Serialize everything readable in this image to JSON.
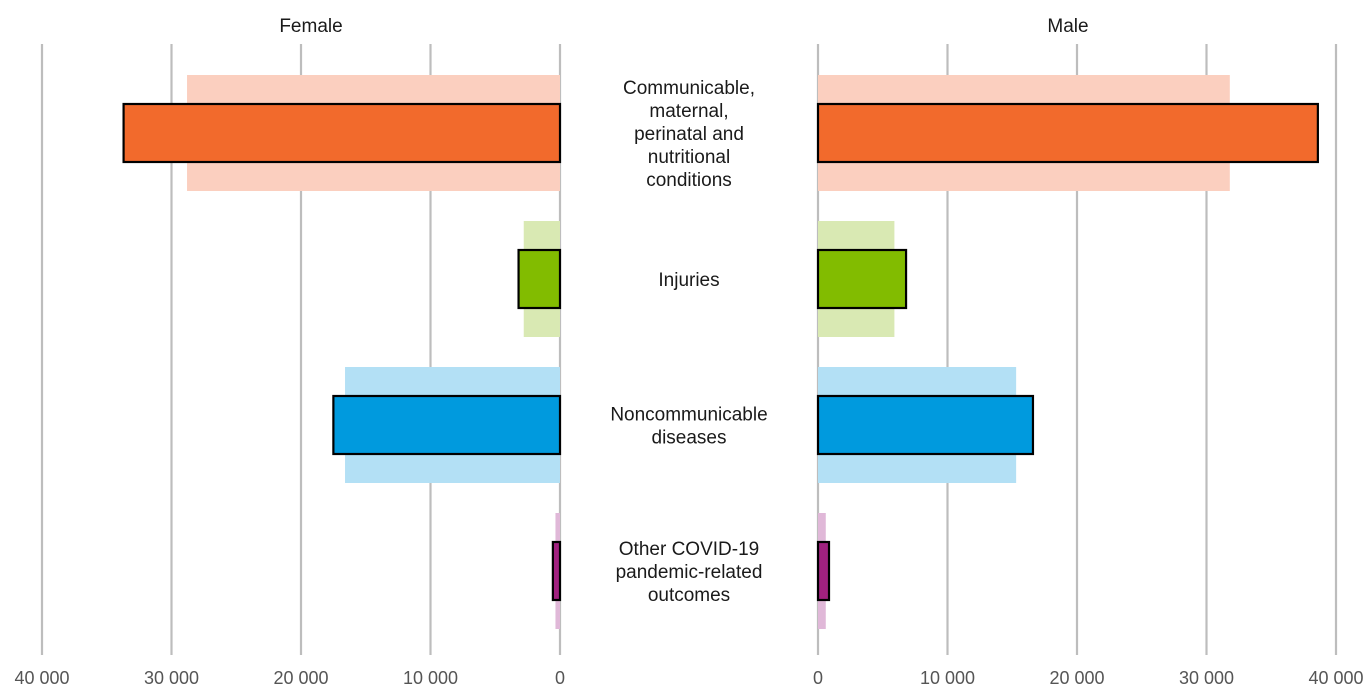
{
  "chart_data": {
    "type": "bar",
    "orientation": "horizontal",
    "layout": "back-to-back panels",
    "panels": [
      {
        "name": "Female",
        "direction": "left",
        "xlim": [
          0,
          40000
        ],
        "ticks": [
          "40 000",
          "30 000",
          "20 000",
          "10 000",
          "0"
        ]
      },
      {
        "name": "Male",
        "direction": "right",
        "xlim": [
          0,
          40000
        ],
        "ticks": [
          "0",
          "10 000",
          "20 000",
          "30 000",
          "40 000"
        ]
      }
    ],
    "categories": [
      {
        "label": "Communicable,\nmaternal,\nperinatal and\nnutritional\nconditions",
        "color": "#f26a2c",
        "light_color": "#fbcfbf",
        "female": 33700,
        "male": 38600,
        "female_background": 28800,
        "male_background": 31800
      },
      {
        "label": "Injuries",
        "color": "#82bc00",
        "light_color": "#d9e9b3",
        "female": 3200,
        "male": 6800,
        "female_background": 2800,
        "male_background": 5900
      },
      {
        "label": "Noncommunicable\ndiseases",
        "color": "#009ade",
        "light_color": "#b3e0f5",
        "female": 17500,
        "male": 16600,
        "female_background": 16600,
        "male_background": 15300
      },
      {
        "label": "Other COVID-19\npandemic-related\noutcomes",
        "color": "#a1217f",
        "light_color": "#e0b8d8",
        "female": 550,
        "male": 850,
        "female_background": 350,
        "male_background": 600
      }
    ],
    "grid": true,
    "legend": "none"
  }
}
